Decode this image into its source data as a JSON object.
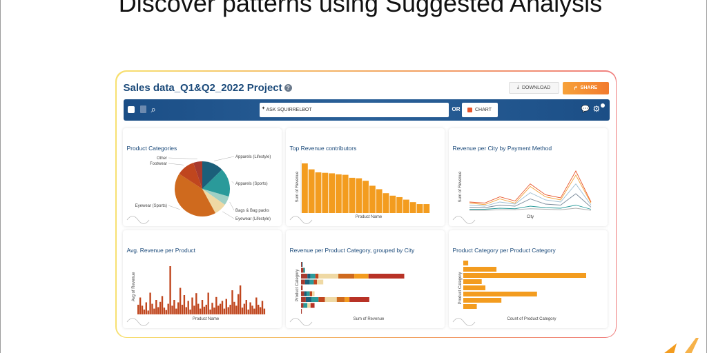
{
  "slide": {
    "title": "Discover patterns using Suggested Analysis"
  },
  "project": {
    "title": "Sales data_Q1&Q2_2022 Project",
    "help_icon": "?"
  },
  "actions": {
    "download_label": "DOWNLOAD",
    "share_label": "SHARE",
    "download_icon": "download-icon",
    "share_icon": "share-icon"
  },
  "toolbar": {
    "ask_placeholder": "ASK SQUIRRELBOT",
    "or_label": "OR",
    "chart_label": "CHART",
    "icons": [
      "checkbox-icon",
      "trash-icon",
      "search-icon",
      "chat-icon",
      "gear-icon"
    ]
  },
  "colors": {
    "accent_orange": "#f39c1f",
    "bar_red": "#c0461e",
    "navy": "#1b4e86",
    "teal": "#2a9a9a"
  },
  "cards": [
    {
      "title": "Product Categories"
    },
    {
      "title": "Top Revenue contributors",
      "xlabel": "Product Name",
      "ylabel": "Sum of Revenue"
    },
    {
      "title": "Revenue per City by Payment Method",
      "xlabel": "City",
      "ylabel": "Sum of Revenue"
    },
    {
      "title": "Avg. Revenue per Product",
      "xlabel": "Product Name",
      "ylabel": "Avg of Revenue"
    },
    {
      "title": "Revenue per Product Category, grouped by City",
      "xlabel": "Sum of Revenue",
      "ylabel": "Product Category"
    },
    {
      "title": "Product Category per Product Category",
      "xlabel": "Count of Product Category",
      "ylabel": "Product Category"
    }
  ],
  "chart_data": [
    {
      "type": "pie",
      "title": "Product Categories",
      "slices": [
        {
          "label": "Apparels (Lifestyle)",
          "value": 12,
          "color": "#1b5f7a"
        },
        {
          "label": "Apparels (Sports)",
          "value": 16,
          "color": "#2a9a9a"
        },
        {
          "label": "Bags & Bag packs",
          "value": 5,
          "color": "#9fd0c4"
        },
        {
          "label": "Eyewear (Lifestyle)",
          "value": 7,
          "color": "#efd9a4"
        },
        {
          "label": "Eyewear (Sports)",
          "value": 40,
          "color": "#cf6a1e"
        },
        {
          "label": "Footwear",
          "value": 10,
          "color": "#c0461e"
        },
        {
          "label": "Other",
          "value": 5,
          "color": "#a83a2e"
        }
      ]
    },
    {
      "type": "bar",
      "title": "Top Revenue contributors",
      "xlabel": "Product Name",
      "ylabel": "Sum of Revenue",
      "values": [
        100,
        88,
        82,
        81,
        80,
        78,
        77,
        71,
        70,
        65,
        55,
        48,
        40,
        35,
        32,
        27,
        22,
        18,
        18
      ]
    },
    {
      "type": "line",
      "title": "Revenue per City by Payment Method",
      "xlabel": "City",
      "ylabel": "Sum of Revenue",
      "series": [
        {
          "color": "#e8542a",
          "values": [
            20,
            18,
            30,
            22,
            55,
            34,
            28,
            80,
            20
          ]
        },
        {
          "color": "#f3a23a",
          "values": [
            18,
            15,
            26,
            18,
            50,
            30,
            24,
            72,
            18
          ]
        },
        {
          "color": "#9bbcd0",
          "values": [
            14,
            12,
            20,
            16,
            38,
            24,
            20,
            55,
            14
          ]
        },
        {
          "color": "#7a8a9a",
          "values": [
            10,
            9,
            14,
            12,
            26,
            16,
            14,
            36,
            10
          ]
        },
        {
          "color": "#2a9a9a",
          "values": [
            6,
            6,
            8,
            7,
            12,
            9,
            8,
            14,
            6
          ]
        },
        {
          "color": "#b0b0b0",
          "values": [
            4,
            4,
            5,
            5,
            7,
            6,
            5,
            8,
            4
          ]
        }
      ]
    },
    {
      "type": "bar",
      "title": "Avg. Revenue per Product",
      "xlabel": "Product Name",
      "ylabel": "Avg of Revenue",
      "values": [
        20,
        35,
        18,
        10,
        25,
        8,
        45,
        22,
        12,
        30,
        15,
        26,
        38,
        14,
        9,
        22,
        100,
        18,
        30,
        12,
        25,
        55,
        20,
        40,
        15,
        28,
        10,
        35,
        18,
        44,
        22,
        12,
        30,
        16,
        20,
        45,
        10,
        24,
        14,
        36,
        18,
        22,
        28,
        12,
        32,
        15,
        20,
        50,
        26,
        18,
        42,
        60,
        14,
        22,
        30,
        10,
        25,
        18,
        12,
        35,
        20,
        15,
        28,
        12
      ]
    },
    {
      "type": "bar",
      "title": "Revenue per Product Category, grouped by City",
      "xlabel": "Sum of Revenue",
      "ylabel": "Product Category",
      "orientation": "horizontal",
      "stacked": true,
      "colors": [
        "#a83a2e",
        "#1b5f7a",
        "#2a9a9a",
        "#c0461e",
        "#efd9a4",
        "#cf6a1e",
        "#f39c1f",
        "#b83226"
      ],
      "rows": [
        [
          1,
          1,
          0,
          0,
          0,
          0,
          0,
          0
        ],
        [
          3,
          0,
          2,
          0,
          0,
          0,
          0,
          0
        ],
        [
          8,
          4,
          6,
          4,
          25,
          20,
          18,
          45
        ],
        [
          5,
          6,
          5,
          4,
          8,
          0,
          0,
          0
        ],
        [
          2,
          0,
          0,
          0,
          0,
          0,
          0,
          0
        ],
        [
          4,
          3,
          4,
          3,
          3,
          0,
          0,
          0
        ],
        [
          6,
          7,
          9,
          8,
          15,
          10,
          6,
          25
        ],
        [
          3,
          0,
          5,
          0,
          4,
          0,
          0,
          5
        ],
        [
          1,
          0,
          0,
          0,
          0,
          0,
          0,
          0
        ]
      ]
    },
    {
      "type": "bar",
      "title": "Product Category per Product Category",
      "xlabel": "Count of Product Category",
      "ylabel": "Product Category",
      "orientation": "horizontal",
      "values": [
        4,
        27,
        100,
        15,
        18,
        60,
        31,
        11
      ]
    }
  ]
}
